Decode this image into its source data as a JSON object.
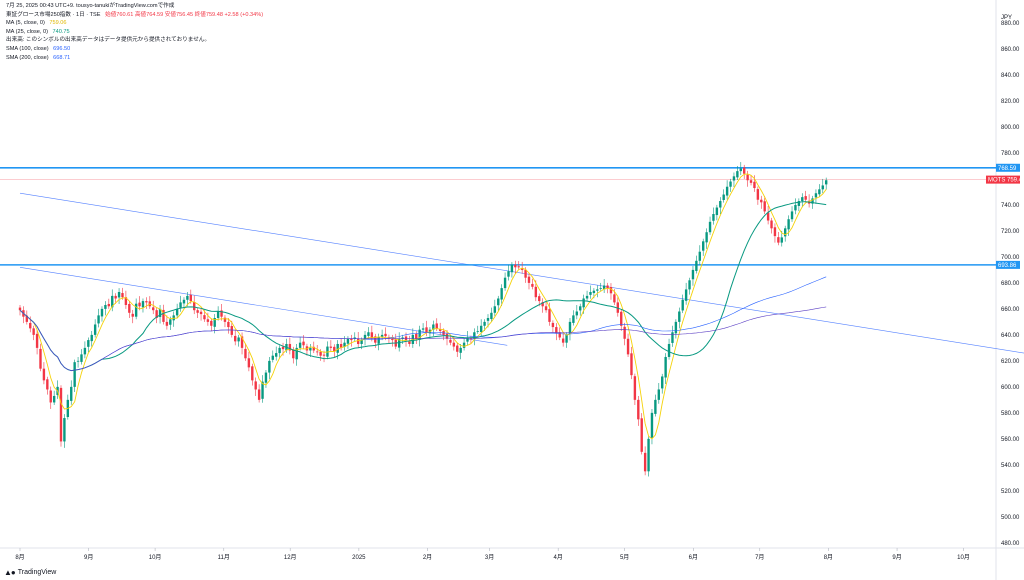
{
  "header": {
    "watermark": "7月 25, 2025 00:43 UTC+9.  tousyo-tanukiがTradingView.comで作成"
  },
  "legend": {
    "symbol": "東証グロース市場250指数 · 1日 · TSE",
    "ohlc": "始値760.61  高値764.59  安値756.45  終値759.48  +2.58 (+0.34%)",
    "rows": [
      {
        "label": "MA (5, close, 0)",
        "value": "759.06",
        "color": "#f5d20a"
      },
      {
        "label": "MA (25, close, 0)",
        "value": "740.75",
        "color": "#089981"
      },
      {
        "label": "出来高: このシンボルの出来高データはデータ提供元から提供されておりません。",
        "value": "",
        "color": "#131722"
      },
      {
        "label": "SMA (100, close)",
        "value": "696.50",
        "color": "#2962ff"
      },
      {
        "label": "SMA (200, close)",
        "value": "668.71",
        "color": "#2962ff"
      }
    ]
  },
  "axis": {
    "currency": "JPY",
    "price_badge": {
      "symbol": "MOTS",
      "value": "759.48"
    },
    "level_labels": [
      "768.59",
      "693.86"
    ]
  },
  "brand": "TradingView",
  "chart_data": {
    "type": "candlestick",
    "title": "東証グロース市場250指数 · 1日 · TSE",
    "y_axis": {
      "ticks": [
        480,
        500,
        520,
        540,
        560,
        580,
        600,
        620,
        640,
        660,
        680,
        700,
        720,
        740,
        760,
        780,
        800,
        820,
        840,
        860,
        880
      ],
      "range": [
        476,
        890
      ],
      "unit": "JPY"
    },
    "x_axis": {
      "labels": [
        "8月",
        "9月",
        "10月",
        "11月",
        "12月",
        "2025",
        "2月",
        "3月",
        "4月",
        "5月",
        "6月",
        "7月",
        "8月",
        "9月",
        "10月"
      ],
      "label_positions_days": [
        0,
        31,
        61,
        92,
        122,
        153,
        184,
        212,
        243,
        273,
        304,
        334,
        365,
        396,
        426
      ]
    },
    "start_date": "2024-07-25",
    "horizontal_levels": [
      768.59,
      693.86
    ],
    "current_price": 759.48,
    "trendlines": [
      {
        "from": {
          "date": "2024-07-25",
          "price": 749
        },
        "to": {
          "date": "2025-10-25",
          "price": 625
        }
      },
      {
        "from": {
          "date": "2024-07-25",
          "price": 692
        },
        "to": {
          "date": "2025-03-02",
          "price": 632
        }
      }
    ],
    "closes": [
      659,
      654,
      650,
      645,
      640,
      630,
      614,
      605,
      598,
      588,
      593,
      600,
      558,
      576,
      590,
      600,
      619,
      620,
      625,
      630,
      636,
      640,
      648,
      655,
      660,
      663,
      662,
      670,
      668,
      673,
      669,
      663,
      657,
      654,
      664,
      662,
      666,
      665,
      662,
      659,
      653,
      660,
      650,
      647,
      652,
      655,
      660,
      665,
      667,
      670,
      666,
      659,
      657,
      656,
      652,
      650,
      647,
      653,
      658,
      654,
      650,
      646,
      640,
      635,
      638,
      630,
      622,
      615,
      605,
      598,
      590,
      604,
      611,
      620,
      624,
      626,
      630,
      629,
      633,
      628,
      622,
      630,
      634,
      632,
      628,
      630,
      628,
      627,
      624,
      624,
      631,
      630,
      627,
      633,
      630,
      634,
      637,
      636,
      638,
      633,
      636,
      640,
      642,
      638,
      634,
      638,
      640,
      639,
      637,
      636,
      631,
      637,
      638,
      636,
      633,
      640,
      637,
      644,
      645,
      642,
      644,
      648,
      645,
      643,
      640,
      637,
      634,
      631,
      627,
      630,
      634,
      638,
      637,
      642,
      643,
      647,
      650,
      653,
      657,
      662,
      668,
      676,
      684,
      689,
      694,
      692,
      692,
      690,
      684,
      680,
      677,
      669,
      666,
      662,
      659,
      650,
      646,
      641,
      638,
      634,
      640,
      650,
      655,
      658,
      662,
      668,
      670,
      673,
      674,
      675,
      676,
      678,
      676,
      672,
      665,
      657,
      647,
      637,
      625,
      609,
      590,
      575,
      550,
      535,
      560,
      580,
      590,
      598,
      608,
      623,
      633,
      642,
      650,
      658,
      667,
      675,
      682,
      690,
      697,
      704,
      712,
      719,
      727,
      733,
      738,
      743,
      748,
      754,
      758,
      762,
      766,
      768,
      764,
      759,
      757,
      753,
      744,
      742,
      735,
      728,
      722,
      716,
      711,
      715,
      722,
      729,
      735,
      740,
      743,
      746,
      744,
      741,
      745,
      749,
      752,
      755,
      759
    ]
  }
}
